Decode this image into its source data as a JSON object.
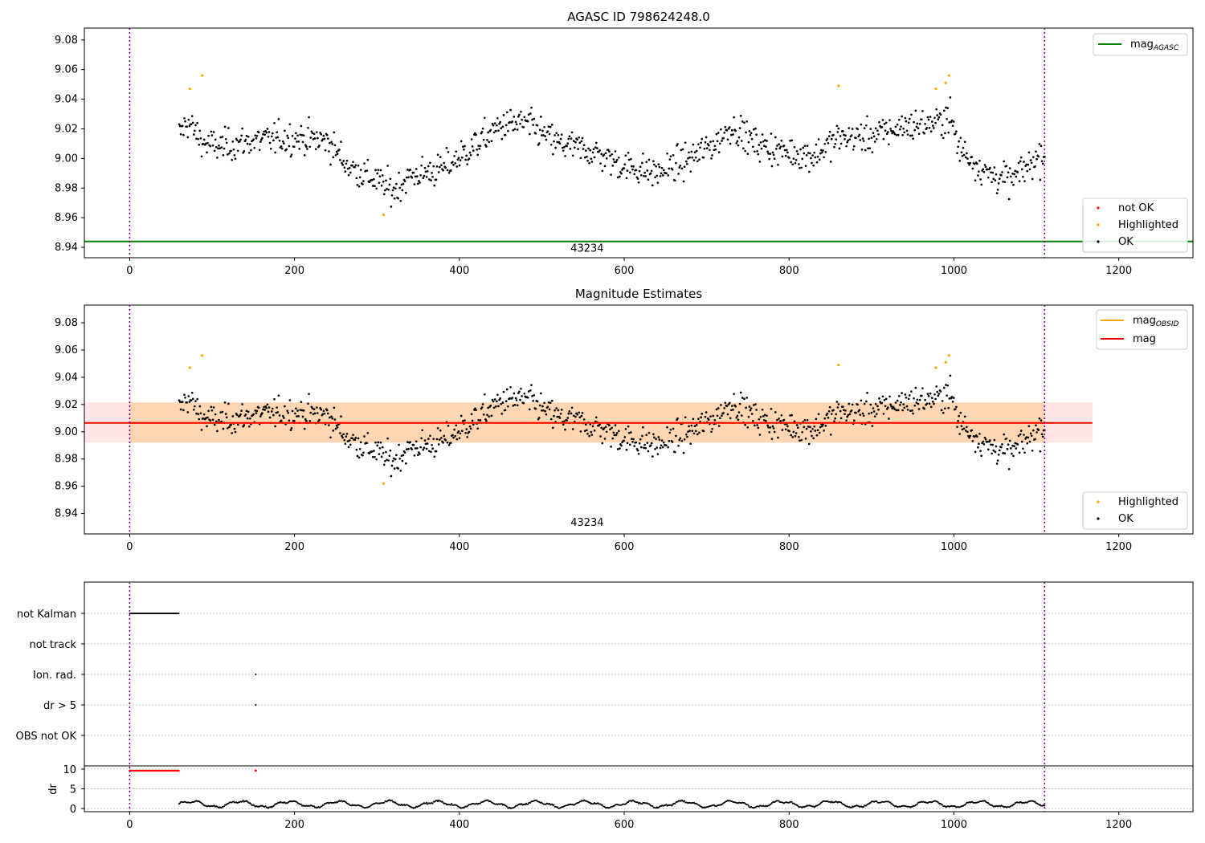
{
  "chart_data": [
    {
      "type": "scatter",
      "title": "AGASC ID 798624248.0",
      "xlim": [
        -55,
        1290
      ],
      "ylim": [
        8.933,
        9.088
      ],
      "xticks": [
        0,
        200,
        400,
        600,
        800,
        1000,
        1200
      ],
      "yticks": [
        8.94,
        8.96,
        8.98,
        9.0,
        9.02,
        9.04,
        9.06,
        9.08
      ],
      "vlines": [
        0,
        1110
      ],
      "hline": {
        "y": 8.944,
        "color": "#008000"
      },
      "annotation": {
        "text": "43234",
        "x": 555,
        "y": 8.937
      },
      "legend_top": {
        "placement": "top-right",
        "entries": [
          {
            "label": "mag",
            "sub": "AGASC",
            "color": "#008000"
          }
        ]
      },
      "legend_bottom": {
        "placement": "lower-right",
        "entries": [
          {
            "label": "not OK",
            "color": "#ff0000"
          },
          {
            "label": "Highlighted",
            "color": "#ffa500"
          },
          {
            "label": "OK",
            "color": "#000000"
          }
        ]
      },
      "highlighted_points": [
        {
          "x": 73,
          "y": 9.047
        },
        {
          "x": 88,
          "y": 9.056
        },
        {
          "x": 308,
          "y": 8.962
        },
        {
          "x": 860,
          "y": 9.049
        },
        {
          "x": 978,
          "y": 9.047
        },
        {
          "x": 990,
          "y": 9.051
        },
        {
          "x": 994,
          "y": 9.056
        }
      ]
    },
    {
      "type": "scatter",
      "title": "Magnitude Estimates",
      "xlim": [
        -55,
        1290
      ],
      "ylim": [
        8.925,
        9.093
      ],
      "xticks": [
        0,
        200,
        400,
        600,
        800,
        1000,
        1200
      ],
      "yticks": [
        8.94,
        8.96,
        8.98,
        9.0,
        9.02,
        9.04,
        9.06,
        9.08
      ],
      "vlines": [
        0,
        1110
      ],
      "mag_obsid": {
        "value": 9.0065,
        "lo": 8.992,
        "hi": 9.0215,
        "x0": 0,
        "x1": 1110,
        "color": "#ffa500"
      },
      "mag": {
        "value": 9.0065,
        "lo": 8.992,
        "hi": 9.0215,
        "x0": -55,
        "x1": 1168,
        "color": "#ff0000"
      },
      "annotation": {
        "text": "43234",
        "x": 555,
        "y": 8.931
      },
      "legend_top": {
        "placement": "top-right",
        "entries": [
          {
            "label": "mag",
            "sub": "OBSID",
            "color": "#ffa500"
          },
          {
            "label": "mag",
            "sub": "",
            "color": "#ff0000"
          }
        ]
      },
      "legend_bottom": {
        "placement": "lower-right",
        "entries": [
          {
            "label": "Highlighted",
            "color": "#ffa500"
          },
          {
            "label": "OK",
            "color": "#000000"
          }
        ]
      }
    },
    {
      "type": "scatter",
      "flags_panel": {
        "categories": [
          "not Kalman",
          "not track",
          "Ion. rad.",
          "dr > 5",
          "OBS not OK"
        ],
        "not_kalman_range": [
          0,
          60
        ],
        "ion_rad_x": [
          153
        ],
        "dr_gt_5_x": [
          153
        ]
      },
      "dr_panel": {
        "ylabel": "dr",
        "yticks": [
          0,
          5,
          10
        ],
        "ylim": [
          -0.8,
          10.8
        ],
        "red_range": [
          0,
          60
        ],
        "red_value": 9.6,
        "red_marker_x": 153
      },
      "xlim": [
        -55,
        1290
      ],
      "xticks": [
        0,
        200,
        400,
        600,
        800,
        1000,
        1200
      ],
      "vlines": [
        0,
        1110
      ]
    }
  ]
}
